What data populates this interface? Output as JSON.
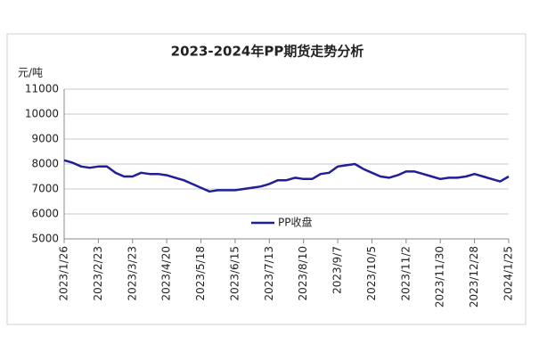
{
  "chart_data": {
    "type": "line",
    "title": "2023-2024年PP期货走势分析",
    "y_label": "元/吨",
    "x": [
      "2023/1/26",
      "2023/2/2",
      "2023/2/9",
      "2023/2/16",
      "2023/2/23",
      "2023/3/2",
      "2023/3/9",
      "2023/3/16",
      "2023/3/23",
      "2023/3/30",
      "2023/4/6",
      "2023/4/13",
      "2023/4/20",
      "2023/4/27",
      "2023/5/4",
      "2023/5/11",
      "2023/5/18",
      "2023/5/25",
      "2023/6/1",
      "2023/6/8",
      "2023/6/15",
      "2023/6/22",
      "2023/6/29",
      "2023/7/6",
      "2023/7/13",
      "2023/7/20",
      "2023/7/27",
      "2023/8/3",
      "2023/8/10",
      "2023/8/17",
      "2023/8/24",
      "2023/8/31",
      "2023/9/7",
      "2023/9/14",
      "2023/9/21",
      "2023/9/28",
      "2023/10/5",
      "2023/10/12",
      "2023/10/19",
      "2023/10/26",
      "2023/11/2",
      "2023/11/9",
      "2023/11/16",
      "2023/11/23",
      "2023/11/30",
      "2023/12/7",
      "2023/12/14",
      "2023/12/21",
      "2023/12/28",
      "2024/1/4",
      "2024/1/11",
      "2024/1/18",
      "2024/1/25"
    ],
    "series": [
      {
        "name": "PP收盘",
        "color": "#1f1f99",
        "values": [
          8150,
          8050,
          7900,
          7850,
          7900,
          7900,
          7650,
          7500,
          7500,
          7650,
          7600,
          7600,
          7550,
          7450,
          7350,
          7200,
          7050,
          6900,
          6950,
          6950,
          6950,
          7000,
          7050,
          7100,
          7200,
          7350,
          7350,
          7450,
          7400,
          7400,
          7600,
          7650,
          7900,
          7950,
          8000,
          7800,
          7650,
          7500,
          7450,
          7550,
          7700,
          7700,
          7600,
          7500,
          7400,
          7450,
          7450,
          7500,
          7600,
          7500,
          7400,
          7300,
          7500
        ]
      }
    ],
    "xlim": [
      "2023/1/26",
      "2024/1/25"
    ],
    "xticks": [
      "2023/1/26",
      "2023/2/23",
      "2023/3/23",
      "2023/4/20",
      "2023/5/18",
      "2023/6/15",
      "2023/7/13",
      "2023/8/10",
      "2023/9/7",
      "2023/10/5",
      "2023/11/2",
      "2023/11/30",
      "2023/12/28",
      "2024/1/25"
    ],
    "ylim": [
      5000,
      11000
    ],
    "yticks": [
      5000,
      6000,
      7000,
      8000,
      9000,
      10000,
      11000
    ],
    "grid": true,
    "legend": "bottom"
  }
}
